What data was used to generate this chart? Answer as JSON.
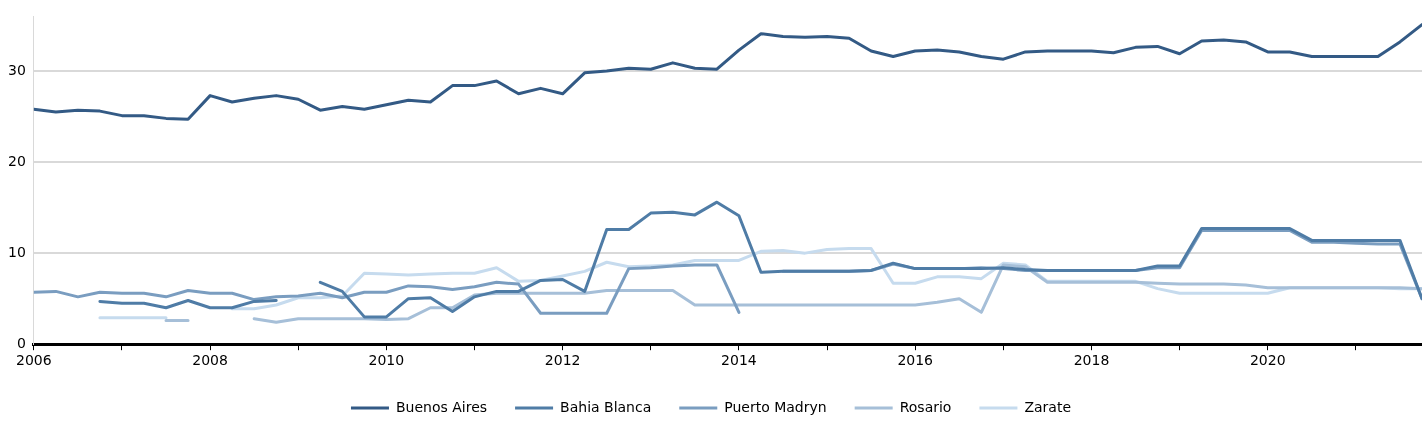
{
  "chart_data": {
    "type": "line",
    "x": [
      2006,
      2006.25,
      2006.5,
      2006.75,
      2007,
      2007.25,
      2007.5,
      2007.75,
      2008,
      2008.25,
      2008.5,
      2008.75,
      2009,
      2009.25,
      2009.5,
      2009.75,
      2010,
      2010.25,
      2010.5,
      2010.75,
      2011,
      2011.25,
      2011.5,
      2011.75,
      2012,
      2012.25,
      2012.5,
      2012.75,
      2013,
      2013.25,
      2013.5,
      2013.75,
      2014,
      2014.25,
      2014.5,
      2014.75,
      2015,
      2015.25,
      2015.5,
      2015.75,
      2016,
      2016.25,
      2016.5,
      2016.75,
      2017,
      2017.25,
      2017.5,
      2017.75,
      2018,
      2018.25,
      2018.5,
      2018.75,
      2019,
      2019.25,
      2019.5,
      2019.75,
      2020,
      2020.25,
      2020.5,
      2020.75,
      2021,
      2021.25,
      2021.5,
      2021.75
    ],
    "series": [
      {
        "name": "Buenos Aires",
        "color": "#335a85",
        "values": [
          25.8,
          25.5,
          25.7,
          25.6,
          25.1,
          25.1,
          24.8,
          24.7,
          27.3,
          26.6,
          27.0,
          27.3,
          26.9,
          25.7,
          26.1,
          25.8,
          26.3,
          26.8,
          26.6,
          28.4,
          28.4,
          28.9,
          27.5,
          28.1,
          27.5,
          29.8,
          30.0,
          30.3,
          30.2,
          30.9,
          30.3,
          30.2,
          32.3,
          34.1,
          33.8,
          33.7,
          33.8,
          33.6,
          32.2,
          31.6,
          32.2,
          32.3,
          32.1,
          31.6,
          31.3,
          32.1,
          32.2,
          32.2,
          32.2,
          32.0,
          32.6,
          32.7,
          31.9,
          33.3,
          33.4,
          33.2,
          32.1,
          32.1,
          31.6,
          31.6,
          31.6,
          31.6,
          33.2,
          35.1
        ]
      },
      {
        "name": "Bahia Blanca",
        "color": "#4f7ca6",
        "values": [
          null,
          null,
          null,
          4.7,
          4.5,
          4.5,
          4.0,
          4.8,
          4.0,
          4.0,
          4.7,
          4.8,
          null,
          6.8,
          5.8,
          3.0,
          3.0,
          5.0,
          5.1,
          3.6,
          5.2,
          5.8,
          5.8,
          7.0,
          7.1,
          5.8,
          12.6,
          12.6,
          14.4,
          14.5,
          14.2,
          15.6,
          14.1,
          7.9,
          8.0,
          8.0,
          8.0,
          8.0,
          8.1,
          8.9,
          8.3,
          8.3,
          8.3,
          8.3,
          8.4,
          8.2,
          8.1,
          8.1,
          8.1,
          8.1,
          8.1,
          8.6,
          8.6,
          12.7,
          12.7,
          12.7,
          12.7,
          12.7,
          11.4,
          11.4,
          11.4,
          11.4,
          11.4,
          5.0
        ]
      },
      {
        "name": "Puerto Madryn",
        "color": "#7a9dc0",
        "values": [
          5.7,
          5.8,
          5.2,
          5.7,
          5.6,
          5.6,
          5.2,
          5.9,
          5.6,
          5.6,
          4.9,
          5.2,
          5.3,
          5.6,
          5.1,
          5.7,
          5.7,
          6.4,
          6.3,
          6.0,
          6.3,
          6.8,
          6.6,
          3.4,
          3.4,
          3.4,
          3.4,
          8.3,
          8.4,
          8.6,
          8.7,
          8.7,
          3.5,
          null,
          8.0,
          8.0,
          8.0,
          8.0,
          8.1,
          8.8,
          8.3,
          8.3,
          8.3,
          8.4,
          8.3,
          8.1,
          8.1,
          8.1,
          8.1,
          8.1,
          8.1,
          8.4,
          8.4,
          12.5,
          12.5,
          12.5,
          12.5,
          12.5,
          11.2,
          11.2,
          11.1,
          11.0,
          11.0,
          5.0
        ]
      },
      {
        "name": "Rosario",
        "color": "#a6bfd8",
        "values": [
          null,
          null,
          null,
          null,
          null,
          null,
          2.6,
          2.6,
          null,
          null,
          2.8,
          2.4,
          2.8,
          2.8,
          2.8,
          2.8,
          2.7,
          2.8,
          4.0,
          4.0,
          5.4,
          5.6,
          5.6,
          5.6,
          5.6,
          5.6,
          5.9,
          5.9,
          5.9,
          5.9,
          4.3,
          4.3,
          4.3,
          4.3,
          4.3,
          4.3,
          4.3,
          4.3,
          4.3,
          4.3,
          4.3,
          4.6,
          5.0,
          3.5,
          8.7,
          8.5,
          6.8,
          6.8,
          6.8,
          6.8,
          6.8,
          6.7,
          6.6,
          6.6,
          6.6,
          6.5,
          6.2,
          6.2,
          6.2,
          6.2,
          6.2,
          6.2,
          6.2,
          6.1
        ]
      },
      {
        "name": "Zarate",
        "color": "#c6dbee",
        "values": [
          null,
          null,
          null,
          2.9,
          2.9,
          2.9,
          2.9,
          null,
          null,
          3.9,
          3.9,
          4.3,
          5.1,
          5.1,
          5.3,
          7.8,
          7.7,
          7.6,
          7.7,
          7.8,
          7.8,
          8.4,
          6.9,
          7.0,
          7.5,
          8.0,
          9.0,
          8.5,
          8.6,
          8.7,
          9.2,
          9.2,
          9.2,
          10.2,
          10.3,
          10.0,
          10.4,
          10.5,
          10.5,
          6.7,
          6.7,
          7.4,
          7.4,
          7.2,
          8.9,
          8.7,
          6.9,
          6.9,
          6.9,
          6.9,
          6.9,
          6.1,
          5.6,
          5.6,
          5.6,
          5.6,
          5.6,
          6.2,
          6.2,
          6.2,
          6.2,
          6.2,
          6.1,
          6.1
        ]
      }
    ],
    "xlim": [
      2006,
      2021.75
    ],
    "xticks": [
      2006,
      {
        "value": 2007,
        "label": null
      },
      2008,
      {
        "value": 2009,
        "label": null
      },
      2010,
      {
        "value": 2011,
        "label": null
      },
      2012,
      {
        "value": 2013,
        "label": null
      },
      2014,
      {
        "value": 2015,
        "label": null
      },
      2016,
      {
        "value": 2017,
        "label": null
      },
      2018,
      {
        "value": 2019,
        "label": null
      },
      2020,
      {
        "value": 2021,
        "label": null
      }
    ],
    "ylim": [
      0,
      36
    ],
    "yticks": [
      0,
      10,
      20,
      30
    ],
    "grid": "y",
    "legend": "bottom",
    "marker": "none",
    "line_style": "solid"
  }
}
